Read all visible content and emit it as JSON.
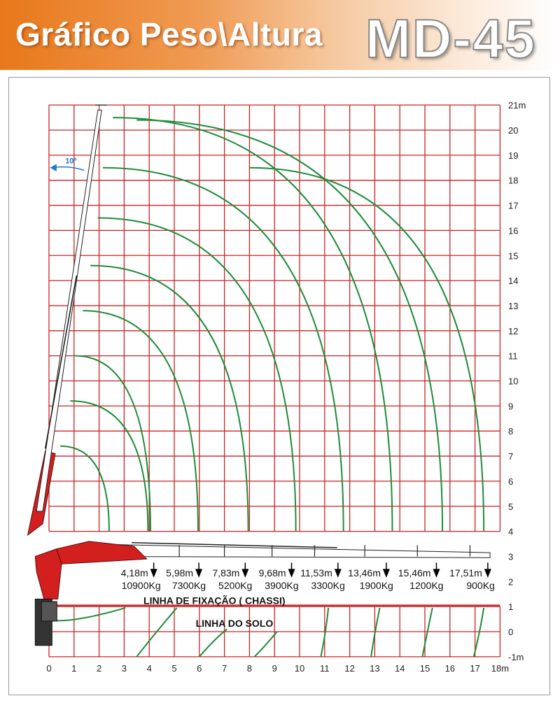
{
  "header": {
    "title": "Gráfico Peso\\Altura",
    "model": "MD-45"
  },
  "colors": {
    "header_orange": "#e8781a",
    "grid": "#cc2222",
    "curve": "#1e8c3a",
    "crane_red": "#d41f1f",
    "angle_blue": "#1e7ac8"
  },
  "chart_data": {
    "type": "load chart",
    "xlim": [
      0,
      18
    ],
    "ylim": [
      -1,
      21
    ],
    "x_ticks": [
      "0",
      "1",
      "2",
      "3",
      "4",
      "5",
      "6",
      "7",
      "8",
      "9",
      "10",
      "11",
      "12",
      "13",
      "14",
      "15",
      "16",
      "17",
      "18m"
    ],
    "y_ticks": [
      "-1m",
      "0",
      "1",
      "2",
      "3",
      "4",
      "5",
      "6",
      "7",
      "8",
      "9",
      "10",
      "11",
      "12",
      "13",
      "14",
      "15",
      "16",
      "17",
      "18",
      "19",
      "20",
      "21m"
    ],
    "angle_label": "10º",
    "fixation_label": "LINHA DE FIXAÇÃO ( CHASSI)",
    "ground_label": "LINHA DO SOLO",
    "reach_points": [
      {
        "radius": "4,18m",
        "load": "10900Kg",
        "x": 4.18
      },
      {
        "radius": "5,98m",
        "load": "7300Kg",
        "x": 5.98
      },
      {
        "radius": "7,83m",
        "load": "5200Kg",
        "x": 7.83
      },
      {
        "radius": "9,68m",
        "load": "3900Kg",
        "x": 9.68
      },
      {
        "radius": "11,53m",
        "load": "3300Kg",
        "x": 11.53
      },
      {
        "radius": "13,46m",
        "load": "1900Kg",
        "x": 13.46
      },
      {
        "radius": "15,46m",
        "load": "1200Kg",
        "x": 15.46
      },
      {
        "radius": "17,51m",
        "load": "900Kg",
        "x": 17.51
      }
    ],
    "envelope_curves": [
      {
        "start_x": 0.45,
        "start_y": 7.4,
        "end_x": 2.4,
        "end_y": 4.0
      },
      {
        "start_x": 0.85,
        "start_y": 9.2,
        "end_x": 3.95,
        "end_y": 4.0
      },
      {
        "start_x": 1.05,
        "start_y": 11.0,
        "end_x": 4.05,
        "end_y": 4.0
      },
      {
        "start_x": 1.35,
        "start_y": 12.8,
        "end_x": 5.95,
        "end_y": 4.0
      },
      {
        "start_x": 1.65,
        "start_y": 14.6,
        "end_x": 7.95,
        "end_y": 4.0
      },
      {
        "start_x": 1.95,
        "start_y": 16.5,
        "end_x": 9.85,
        "end_y": 4.0
      },
      {
        "start_x": 2.15,
        "start_y": 18.5,
        "end_x": 11.75,
        "end_y": 4.0
      },
      {
        "start_x": 2.55,
        "start_y": 20.5,
        "end_x": 13.7,
        "end_y": 4.0
      },
      {
        "start_x": 3.5,
        "start_y": 20.4,
        "end_x": 15.7,
        "end_y": 4.0
      },
      {
        "start_x": 8.0,
        "start_y": 18.5,
        "end_x": 17.35,
        "end_y": 4.0
      }
    ]
  }
}
